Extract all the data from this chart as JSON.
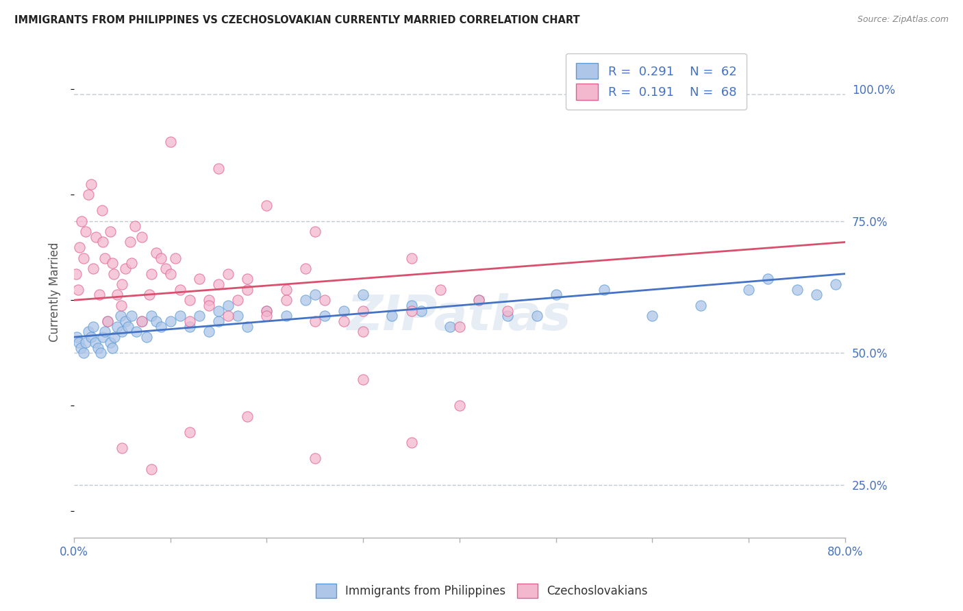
{
  "title": "IMMIGRANTS FROM PHILIPPINES VS CZECHOSLOVAKIAN CURRENTLY MARRIED CORRELATION CHART",
  "source_text": "Source: ZipAtlas.com",
  "ylabel_label": "Currently Married",
  "legend_label_blue": "Immigrants from Philippines",
  "legend_label_pink": "Czechoslovakians",
  "blue_color": "#aec6e8",
  "blue_edge_color": "#5b9bd5",
  "pink_color": "#f4b8ce",
  "pink_edge_color": "#e06090",
  "blue_line_color": "#4472c4",
  "pink_line_color": "#d94f6e",
  "dashed_line_color": "#c0c8d0",
  "watermark_color": "#c8d8e8",
  "xlim": [
    0,
    80
  ],
  "ylim": [
    15,
    108
  ],
  "yticks": [
    25,
    50,
    75,
    100
  ],
  "ytick_labels": [
    "25.0%",
    "50.0%",
    "75.0%",
    "100.0%"
  ],
  "blue_trend_start": 53,
  "blue_trend_end": 65,
  "pink_trend_start": 60,
  "pink_trend_end": 71,
  "dashed_y": 99,
  "blue_scatter_x": [
    0.3,
    0.5,
    0.7,
    1.0,
    1.2,
    1.5,
    1.8,
    2.0,
    2.2,
    2.5,
    2.8,
    3.0,
    3.2,
    3.5,
    3.8,
    4.0,
    4.2,
    4.5,
    4.8,
    5.0,
    5.3,
    5.6,
    6.0,
    6.5,
    7.0,
    7.5,
    8.0,
    8.5,
    9.0,
    10.0,
    11.0,
    12.0,
    13.0,
    14.0,
    15.0,
    16.0,
    17.0,
    18.0,
    20.0,
    22.0,
    24.0,
    26.0,
    28.0,
    30.0,
    33.0,
    36.0,
    39.0,
    42.0,
    45.0,
    50.0,
    55.0,
    60.0,
    65.0,
    70.0,
    72.0,
    75.0,
    77.0,
    79.0,
    15.0,
    25.0,
    35.0,
    48.0
  ],
  "blue_scatter_y": [
    53,
    52,
    51,
    50,
    52,
    54,
    53,
    55,
    52,
    51,
    50,
    53,
    54,
    56,
    52,
    51,
    53,
    55,
    57,
    54,
    56,
    55,
    57,
    54,
    56,
    53,
    57,
    56,
    55,
    56,
    57,
    55,
    57,
    54,
    56,
    59,
    57,
    55,
    58,
    57,
    60,
    57,
    58,
    61,
    57,
    58,
    55,
    60,
    57,
    61,
    62,
    57,
    59,
    62,
    64,
    62,
    61,
    63,
    58,
    61,
    59,
    57
  ],
  "pink_scatter_x": [
    0.2,
    0.4,
    0.6,
    0.8,
    1.0,
    1.2,
    1.5,
    1.8,
    2.0,
    2.3,
    2.6,
    2.9,
    3.2,
    3.5,
    3.8,
    4.1,
    4.5,
    4.9,
    5.3,
    5.8,
    6.3,
    7.0,
    7.8,
    8.5,
    9.5,
    10.5,
    12.0,
    14.0,
    16.0,
    18.0,
    20.0,
    22.0,
    24.0,
    26.0,
    28.0,
    30.0,
    35.0,
    40.0,
    45.0,
    38.0,
    42.0,
    3.0,
    4.0,
    5.0,
    6.0,
    7.0,
    8.0,
    9.0,
    10.0,
    11.0,
    12.0,
    13.0,
    14.0,
    15.0,
    16.0,
    17.0,
    18.0,
    20.0,
    22.0,
    25.0,
    30.0,
    35.0,
    10.0,
    15.0,
    20.0,
    25.0,
    30.0,
    40.0
  ],
  "pink_scatter_y": [
    65,
    62,
    70,
    75,
    68,
    73,
    80,
    82,
    66,
    72,
    61,
    77,
    68,
    56,
    73,
    65,
    61,
    59,
    66,
    71,
    74,
    56,
    61,
    69,
    66,
    68,
    56,
    60,
    65,
    64,
    58,
    62,
    66,
    60,
    56,
    58,
    68,
    55,
    58,
    62,
    60,
    71,
    67,
    63,
    67,
    72,
    65,
    68,
    65,
    62,
    60,
    64,
    59,
    63,
    57,
    60,
    62,
    57,
    60,
    56,
    54,
    58,
    90,
    85,
    78,
    73,
    45,
    40
  ],
  "pink_scatter_x2": [
    5.0,
    8.0,
    12.0,
    18.0,
    25.0,
    35.0
  ],
  "pink_scatter_y2": [
    32,
    28,
    35,
    38,
    30,
    33
  ]
}
